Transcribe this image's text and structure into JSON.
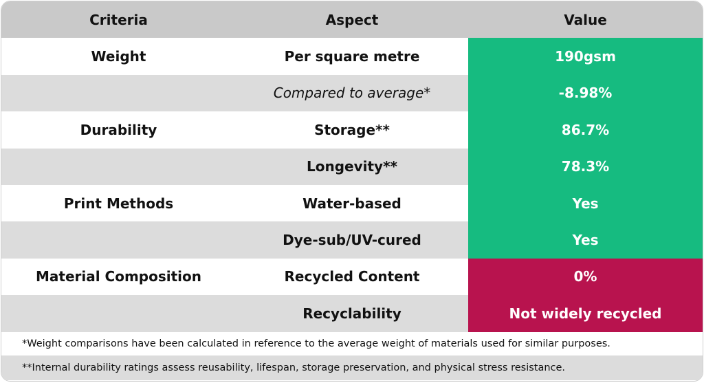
{
  "table": {
    "header": [
      "Criteria",
      "Aspect",
      "Value"
    ],
    "rows": [
      {
        "criteria": "Weight",
        "aspect": "Per square metre",
        "value": "190gsm",
        "color": "#16bb80"
      },
      {
        "aspect": "Compared to average*",
        "value": "-8.98%",
        "color": "#16bb80",
        "italic": true
      },
      {
        "criteria": "Durability",
        "aspect": "Storage**",
        "value": "86.7%",
        "color": "#16bb80"
      },
      {
        "aspect": "Longevity**",
        "value": "78.3%",
        "color": "#16bb80"
      },
      {
        "criteria": "Print Methods",
        "aspect": "Water-based",
        "value": "Yes",
        "color": "#16bb80"
      },
      {
        "aspect": "Dye-sub/UV-cured",
        "value": "Yes",
        "color": "#16bb80"
      },
      {
        "criteria": "Material Composition",
        "aspect": "Recycled Content",
        "value": "0%",
        "color": "#b8134e"
      },
      {
        "aspect": "Recyclability",
        "value": "Not widely recycled",
        "color": "#b8134e"
      }
    ],
    "footnotes": [
      "*Weight comparisons have been calculated in reference to the average weight of materials used for similar purposes.",
      "**Internal durability ratings assess reusability, lifespan, storage preservation, and physical stress resistance."
    ]
  }
}
